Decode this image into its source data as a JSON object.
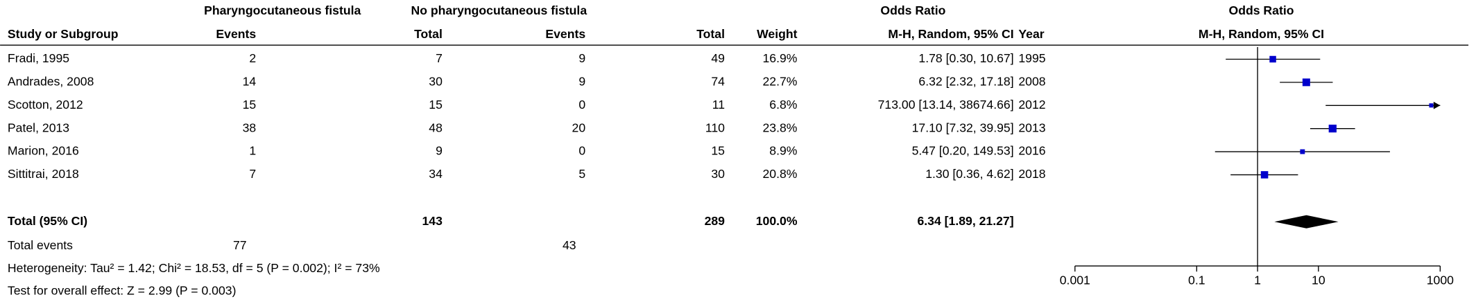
{
  "table": {
    "group_headers": [
      "Pharyngocutaneous fistula",
      "No pharyngocutaneous fistula",
      "Odds Ratio"
    ],
    "columns": [
      "Study or Subgroup",
      "Events",
      "Total",
      "Events",
      "Total",
      "Weight",
      "M-H, Random, 95% CI",
      "Year"
    ],
    "rows": [
      [
        "Fradi, 1995",
        "2",
        "7",
        "9",
        "49",
        "16.9%",
        "1.78 [0.30, 10.67]",
        "1995"
      ],
      [
        "Andrades, 2008",
        "14",
        "30",
        "9",
        "74",
        "22.7%",
        "6.32 [2.32, 17.18]",
        "2008"
      ],
      [
        "Scotton, 2012",
        "15",
        "15",
        "0",
        "11",
        "6.8%",
        "713.00 [13.14, 38674.66]",
        "2012"
      ],
      [
        "Patel, 2013",
        "38",
        "48",
        "20",
        "110",
        "23.8%",
        "17.10 [7.32, 39.95]",
        "2013"
      ],
      [
        "Marion, 2016",
        "1",
        "9",
        "0",
        "15",
        "8.9%",
        "5.47 [0.20, 149.53]",
        "2016"
      ],
      [
        "Sittitrai, 2018",
        "7",
        "34",
        "5",
        "30",
        "20.8%",
        "1.30 [0.36, 4.62]",
        "2018"
      ]
    ],
    "total": [
      "Total (95% CI)",
      "143",
      "289",
      "100.0%",
      "6.34 [1.89, 21.27]"
    ],
    "total_events": [
      "Total events",
      "77",
      "43"
    ],
    "heterogeneity": "Heterogeneity: Tau² = 1.42; Chi² = 18.53, df = 5 (P = 0.002); I² = 73%",
    "overall_effect": "Test for overall effect: Z = 2.99 (P = 0.003)"
  },
  "chart_data": {
    "type": "forest",
    "title": "Odds Ratio",
    "subtitle": "M-H, Random, 95% CI",
    "x_scale": "log",
    "xlim": [
      0.001,
      1000
    ],
    "xticks": [
      0.001,
      0.1,
      1,
      10,
      1000
    ],
    "values": [
      1.78,
      6.32,
      713.0,
      17.1,
      5.47,
      1.3
    ],
    "ci_low": [
      0.3,
      2.32,
      13.14,
      7.32,
      0.2,
      0.36
    ],
    "ci_high": [
      10.67,
      17.18,
      38674.66,
      39.95,
      149.53,
      4.62
    ],
    "weights": [
      16.9,
      22.7,
      6.8,
      23.8,
      8.9,
      20.8
    ],
    "color": "#0000cc",
    "total": {
      "value": 6.34,
      "ci_low": 1.89,
      "ci_high": 21.27,
      "color": "#000000"
    }
  }
}
